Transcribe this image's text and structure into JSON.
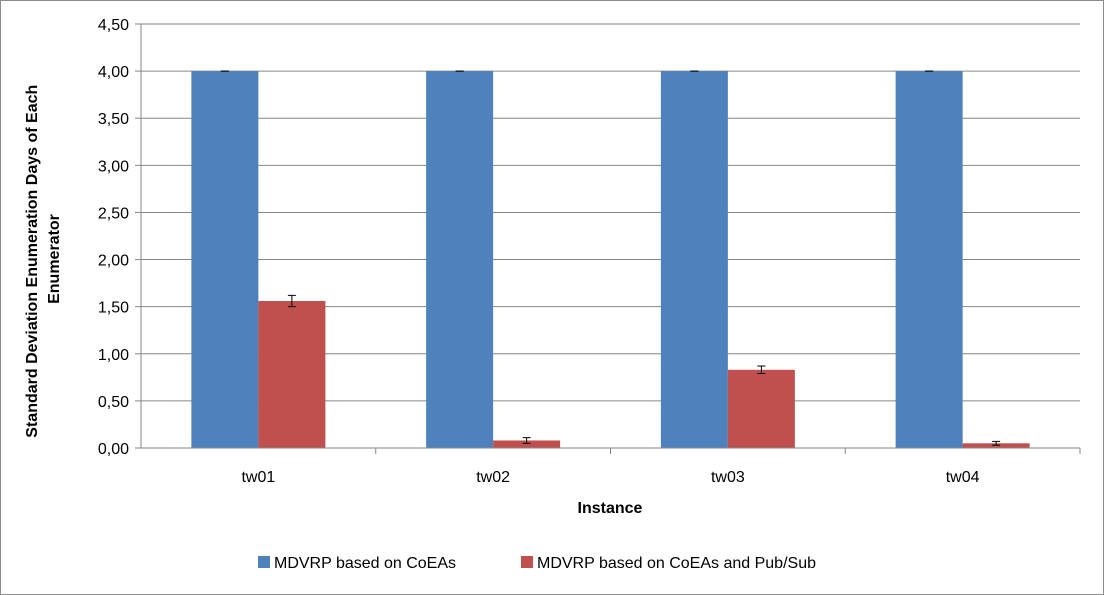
{
  "chart_data": {
    "type": "bar",
    "categories": [
      "tw01",
      "tw02",
      "tw03",
      "tw04"
    ],
    "series": [
      {
        "name": "MDVRP based on CoEAs",
        "color": "#4f81bd",
        "values": [
          4.0,
          4.0,
          4.0,
          4.0
        ],
        "errors": [
          0.0,
          0.0,
          0.0,
          0.0
        ]
      },
      {
        "name": "MDVRP based on CoEAs and Pub/Sub",
        "color": "#c0504d",
        "values": [
          1.56,
          0.08,
          0.83,
          0.05
        ],
        "errors": [
          0.06,
          0.03,
          0.04,
          0.02
        ]
      }
    ],
    "xlabel": "Instance",
    "ylabel": "Standard Deviation Enumeration Days of Each Enumerator",
    "ylim": [
      0,
      4.5
    ],
    "yticks": [
      "0,00",
      "0,50",
      "1,00",
      "1,50",
      "2,00",
      "2,50",
      "3,00",
      "3,50",
      "4,00",
      "4,50"
    ],
    "grid": true,
    "legend_position": "bottom"
  }
}
